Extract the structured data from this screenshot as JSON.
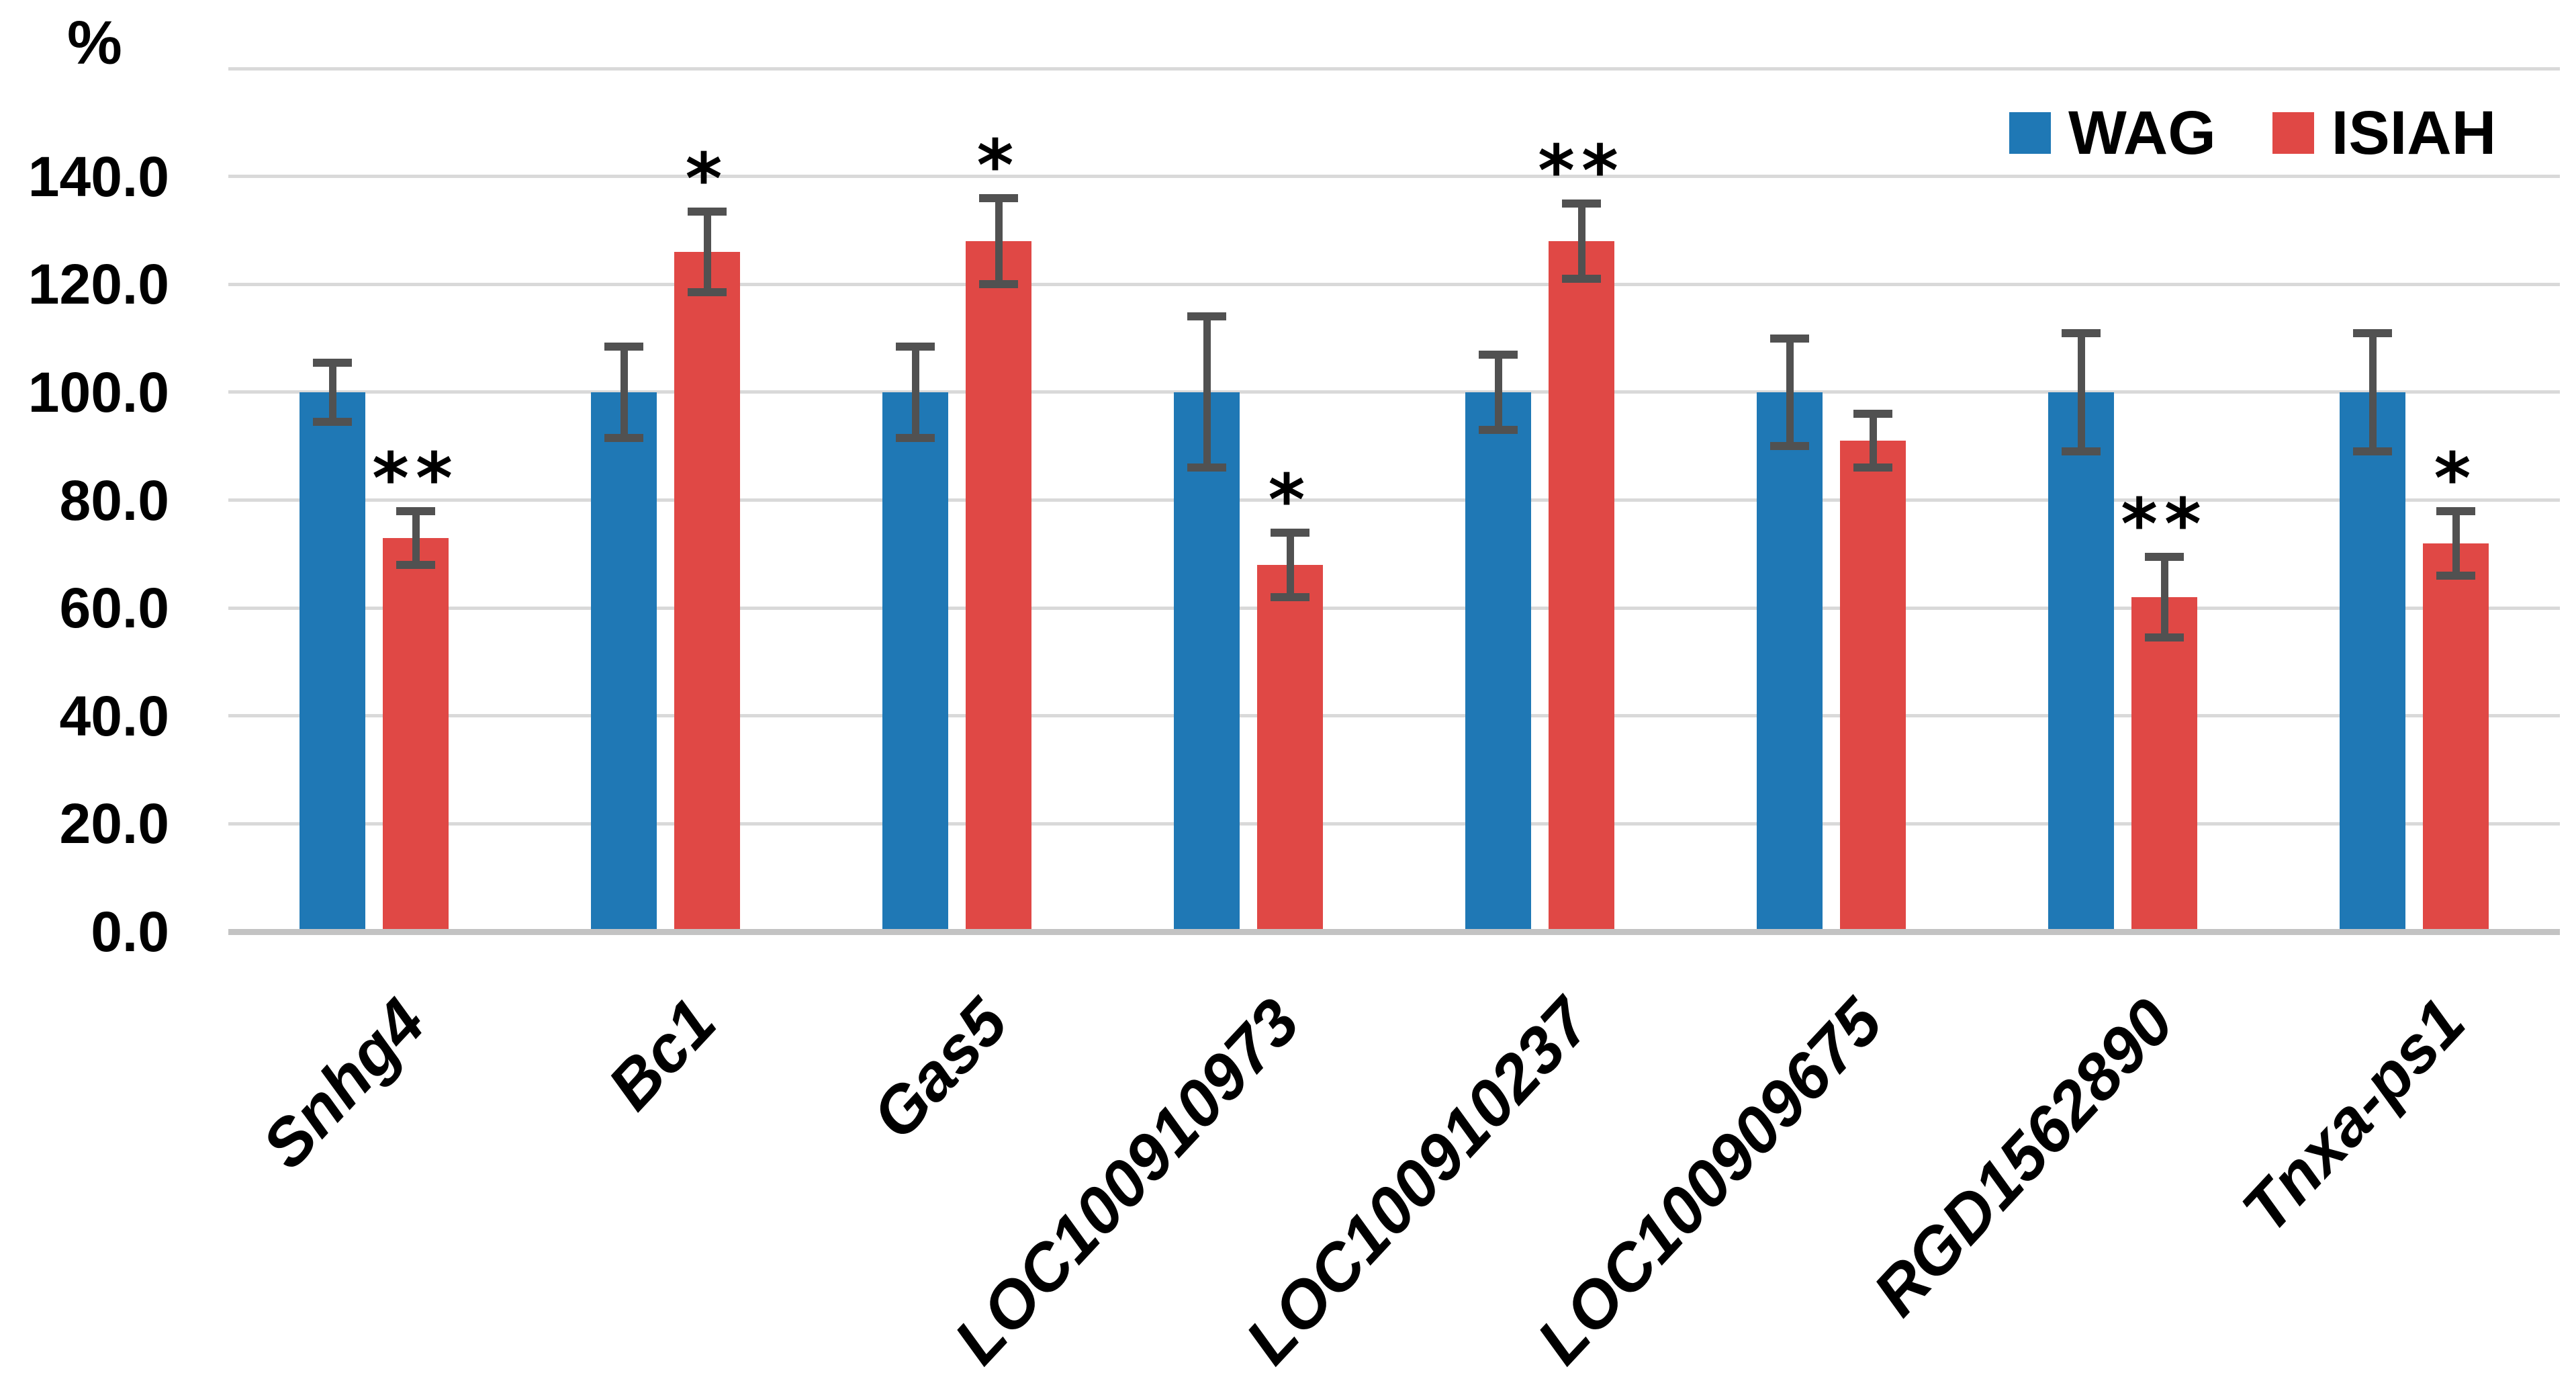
{
  "y_axis": {
    "title": "%",
    "tick_labels": [
      "0.0",
      "20.0",
      "40.0",
      "60.0",
      "80.0",
      "100.0",
      "120.0",
      "140.0"
    ]
  },
  "legend": [
    {
      "label": "WAG",
      "color": "#1f78b5"
    },
    {
      "label": "ISIAH",
      "color": "#e04845"
    }
  ],
  "chart_data": {
    "type": "bar",
    "title": "",
    "xlabel": "",
    "ylabel": "%",
    "ylim": [
      0,
      160
    ],
    "yticks": [
      0,
      20,
      40,
      60,
      80,
      100,
      120,
      140
    ],
    "grid": true,
    "legend_position": "top-right",
    "categories": [
      "Snhg4",
      "Bc1",
      "Gas5",
      "LOC100910973",
      "LOC100910237",
      "LOC100909675",
      "RGD1562890",
      "Tnxa-ps1"
    ],
    "series": [
      {
        "name": "WAG",
        "color": "#1f78b5",
        "values": [
          100,
          100,
          100,
          100,
          100,
          100,
          100,
          100
        ],
        "errors": [
          5.5,
          8.5,
          8.5,
          14,
          7,
          10,
          11,
          11
        ]
      },
      {
        "name": "ISIAH",
        "color": "#e04845",
        "values": [
          73,
          126,
          128,
          68,
          128,
          91,
          62,
          72
        ],
        "errors": [
          5,
          7.5,
          8,
          6,
          7,
          5,
          7.5,
          6
        ]
      }
    ],
    "significance_on_isiah": [
      "**",
      "*",
      "*",
      "*",
      "**",
      "",
      "**",
      "*"
    ],
    "error_bar_color": "#515151"
  }
}
